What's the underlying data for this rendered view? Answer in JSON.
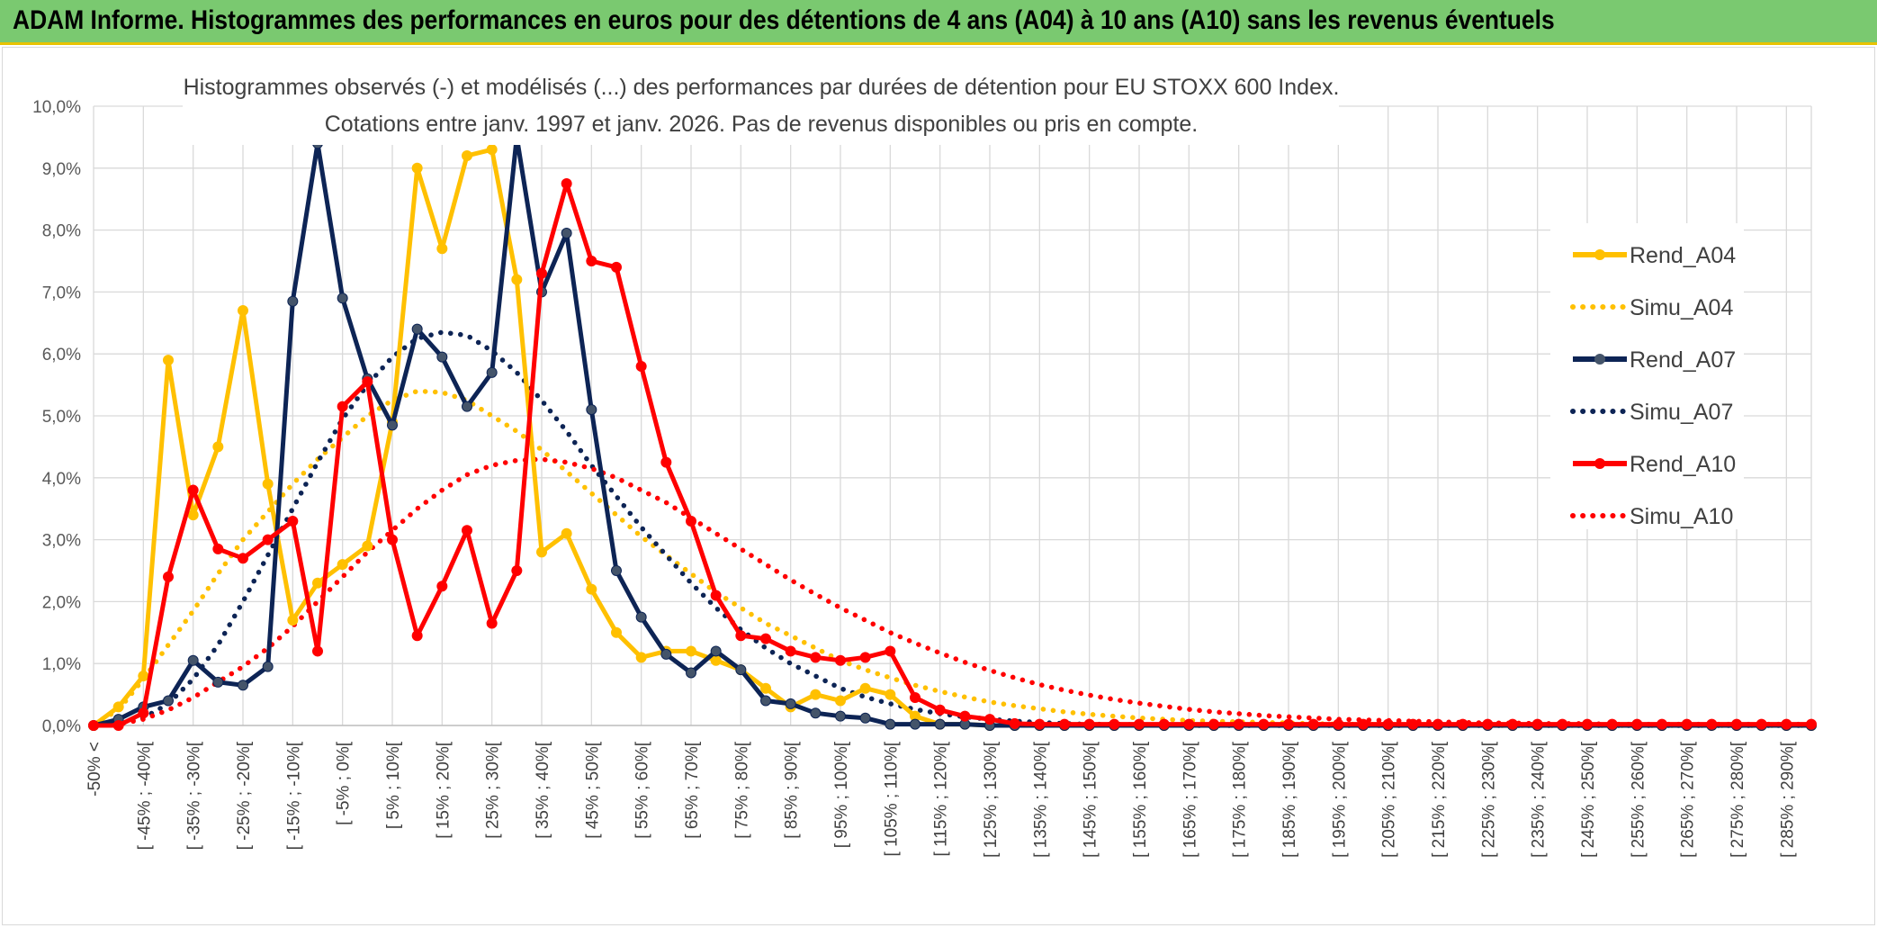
{
  "banner": {
    "title": "ADAM Informe. Histogrammes des performances en euros pour des détentions de 4 ans (A04) à 10 ans (A10) sans les revenus éventuels",
    "background": "#7ac970",
    "accent": "#e8c200"
  },
  "chart_data": {
    "type": "line",
    "title": "Histogrammes observés (-) et modélisés (...) des performances par durées de détention pour EU STOXX 600 Index.",
    "subtitle": "Cotations entre janv. 1997 et janv. 2026. Pas de revenus disponibles ou pris en compte.",
    "xlabel": "",
    "ylabel": "",
    "ylim": [
      0,
      10
    ],
    "y_ticks": [
      "0,0%",
      "1,0%",
      "2,0%",
      "3,0%",
      "4,0%",
      "5,0%",
      "6,0%",
      "7,0%",
      "8,0%",
      "9,0%",
      "10,0%"
    ],
    "grid": true,
    "legend_position": "right",
    "categories": [
      "-50% <",
      "[ -50% ; -45%[",
      "[ -45% ; -40%[",
      "[ -40% ; -35%[",
      "[ -35% ; -30%[",
      "[ -30% ; -25%[",
      "[ -25% ; -20%[",
      "[ -20% ; -15%[",
      "[ -15% ; -10%[",
      "[ -10% ; -5%[",
      "[ -5% ; 0%[",
      "[ 0% ; 5%[",
      "[ 5% ; 10%[",
      "[ 10% ; 15%[",
      "[ 15% ; 20%[",
      "[ 20% ; 25%[",
      "[ 25% ; 30%[",
      "[ 30% ; 35%[",
      "[ 35% ; 40%[",
      "[ 40% ; 45%[",
      "[ 45% ; 50%[",
      "[ 50% ; 55%[",
      "[ 55% ; 60%[",
      "[ 60% ; 65%[",
      "[ 65% ; 70%[",
      "[ 70% ; 75%[",
      "[ 75% ; 80%[",
      "[ 80% ; 85%[",
      "[ 85% ; 90%[",
      "[ 90% ; 95%[",
      "[ 95% ; 100%[",
      "[ 100% ; 105%[",
      "[ 105% ; 110%[",
      "[ 110% ; 115%[",
      "[ 115% ; 120%[",
      "[ 120% ; 125%[",
      "[ 125% ; 130%[",
      "[ 130% ; 135%[",
      "[ 135% ; 140%[",
      "[ 140% ; 145%[",
      "[ 145% ; 150%[",
      "[ 150% ; 155%[",
      "[ 155% ; 160%[",
      "[ 160% ; 165%[",
      "[ 165% ; 170%[",
      "[ 170% ; 175%[",
      "[ 175% ; 180%[",
      "[ 180% ; 185%[",
      "[ 185% ; 190%[",
      "[ 190% ; 195%[",
      "[ 195% ; 200%[",
      "[ 200% ; 205%[",
      "[ 205% ; 210%[",
      "[ 210% ; 215%[",
      "[ 215% ; 220%[",
      "[ 220% ; 225%[",
      "[ 225% ; 230%[",
      "[ 230% ; 235%[",
      "[ 235% ; 240%[",
      "[ 240% ; 245%[",
      "[ 245% ; 250%[",
      "[ 250% ; 255%[",
      "[ 255% ; 260%[",
      "[ 260% ; 265%[",
      "[ 265% ; 270%[",
      "[ 270% ; 275%[",
      "[ 275% ; 280%[",
      "[ 280% ; 285%[",
      "[ 285% ; 290%[",
      "[ 290% ; 295%["
    ],
    "visible_x_labels": [
      "-50% <",
      "[ -45% ; -40%[",
      "[ -35% ; -30%[",
      "[ -25% ; -20%[",
      "[ -15% ; -10%[",
      "[ -5% ; 0%[",
      "[ 5% ; 10%[",
      "[ 15% ; 20%[",
      "[ 25% ; 30%[",
      "[ 35% ; 40%[",
      "[ 45% ; 50%[",
      "[ 55% ; 60%[",
      "[ 65% ; 70%[",
      "[ 75% ; 80%[",
      "[ 85% ; 90%[",
      "[ 95% ; 100%[",
      "[ 105% ; 110%[",
      "[ 115% ; 120%[",
      "[ 125% ; 130%[",
      "[ 135% ; 140%[",
      "[ 145% ; 150%[",
      "[ 155% ; 160%[",
      "[ 165% ; 170%[",
      "[ 175% ; 180%[",
      "[ 185% ; 190%[",
      "[ 195% ; 200%[",
      "[ 205% ; 210%[",
      "[ 215% ; 220%[",
      "[ 225% ; 230%[",
      "[ 235% ; 240%[",
      "[ 245% ; 250%[",
      "[ 255% ; 260%[",
      "[ 265% ; 270%[",
      "[ 275% ; 280%[",
      "[ 285% ; 290%["
    ],
    "series": [
      {
        "name": "Rend_A04",
        "style": "solid",
        "markers": true,
        "color": "#ffc000",
        "values": [
          0.0,
          0.3,
          0.8,
          5.9,
          3.4,
          4.5,
          6.7,
          3.9,
          1.7,
          2.3,
          2.6,
          2.9,
          4.9,
          9.0,
          7.7,
          9.2,
          9.3,
          7.2,
          2.8,
          3.1,
          2.2,
          1.5,
          1.1,
          1.2,
          1.2,
          1.05,
          0.9,
          0.6,
          0.3,
          0.5,
          0.4,
          0.6,
          0.5,
          0.15,
          0.02,
          0.02,
          0.0,
          0.0,
          0.0,
          0.0,
          0.0,
          0.0,
          0.0,
          0.0,
          0.0,
          0.0,
          0.0,
          0.0,
          0.0,
          0.0,
          0.0,
          0.0,
          0.0,
          0.0,
          0.0,
          0.0,
          0.0,
          0.0,
          0.0,
          0.0,
          0.0,
          0.0,
          0.0,
          0.0,
          0.0,
          0.0,
          0.0,
          0.0,
          0.0,
          0.0
        ]
      },
      {
        "name": "Simu_A04",
        "style": "dotted",
        "markers": false,
        "color": "#ffc000",
        "values": [
          0.02,
          0.25,
          0.75,
          1.3,
          1.85,
          2.45,
          3.0,
          3.45,
          3.9,
          4.3,
          4.65,
          5.0,
          5.25,
          5.4,
          5.38,
          5.25,
          5.0,
          4.75,
          4.45,
          4.1,
          3.75,
          3.4,
          3.05,
          2.75,
          2.45,
          2.15,
          1.9,
          1.65,
          1.45,
          1.25,
          1.05,
          0.9,
          0.77,
          0.65,
          0.55,
          0.46,
          0.38,
          0.32,
          0.27,
          0.22,
          0.18,
          0.15,
          0.12,
          0.1,
          0.08,
          0.07,
          0.06,
          0.05,
          0.04,
          0.03,
          0.02,
          0.02,
          0.01,
          0.01,
          0.01,
          0.01,
          0.0,
          0.0,
          0.0,
          0.0,
          0.0,
          0.0,
          0.0,
          0.0,
          0.0,
          0.0,
          0.0,
          0.0,
          0.0,
          0.0
        ]
      },
      {
        "name": "Rend_A07",
        "style": "solid",
        "markers": true,
        "color": "#0d2455",
        "values": [
          0.0,
          0.1,
          0.3,
          0.4,
          1.05,
          0.7,
          0.65,
          0.95,
          6.85,
          9.4,
          6.9,
          5.6,
          4.85,
          6.4,
          5.95,
          5.15,
          5.7,
          9.5,
          7.0,
          7.95,
          5.1,
          2.5,
          1.75,
          1.15,
          0.85,
          1.2,
          0.9,
          0.4,
          0.35,
          0.2,
          0.15,
          0.12,
          0.02,
          0.02,
          0.02,
          0.02,
          0.0,
          0.0,
          0.0,
          0.0,
          0.0,
          0.0,
          0.0,
          0.0,
          0.0,
          0.0,
          0.0,
          0.0,
          0.0,
          0.0,
          0.0,
          0.0,
          0.0,
          0.0,
          0.0,
          0.0,
          0.0,
          0.0,
          0.0,
          0.0,
          0.0,
          0.0,
          0.0,
          0.0,
          0.0,
          0.0,
          0.0,
          0.0,
          0.0,
          0.0
        ]
      },
      {
        "name": "Simu_A07",
        "style": "dotted",
        "markers": false,
        "color": "#0d2455",
        "values": [
          0.0,
          0.02,
          0.12,
          0.35,
          0.75,
          1.3,
          2.0,
          2.75,
          3.5,
          4.25,
          4.95,
          5.5,
          5.95,
          6.25,
          6.35,
          6.3,
          6.05,
          5.7,
          5.25,
          4.75,
          4.2,
          3.7,
          3.2,
          2.75,
          2.3,
          1.9,
          1.55,
          1.25,
          1.0,
          0.8,
          0.6,
          0.46,
          0.35,
          0.26,
          0.19,
          0.14,
          0.1,
          0.07,
          0.05,
          0.03,
          0.02,
          0.02,
          0.01,
          0.01,
          0.0,
          0.0,
          0.0,
          0.0,
          0.0,
          0.0,
          0.0,
          0.0,
          0.0,
          0.0,
          0.0,
          0.0,
          0.0,
          0.0,
          0.0,
          0.0,
          0.0,
          0.0,
          0.0,
          0.0,
          0.0,
          0.0,
          0.0,
          0.0,
          0.0,
          0.0
        ]
      },
      {
        "name": "Rend_A10",
        "style": "solid",
        "markers": true,
        "color": "#ff0000",
        "values": [
          0.0,
          0.0,
          0.2,
          2.4,
          3.8,
          2.85,
          2.7,
          3.0,
          3.3,
          1.2,
          5.15,
          5.55,
          3.0,
          1.45,
          2.25,
          3.15,
          1.65,
          2.5,
          7.3,
          8.75,
          7.5,
          7.4,
          5.8,
          4.25,
          3.3,
          2.1,
          1.45,
          1.4,
          1.2,
          1.1,
          1.05,
          1.1,
          1.2,
          0.45,
          0.25,
          0.15,
          0.1,
          0.03,
          0.02,
          0.02,
          0.02,
          0.02,
          0.02,
          0.02,
          0.02,
          0.02,
          0.02,
          0.02,
          0.02,
          0.02,
          0.02,
          0.02,
          0.02,
          0.02,
          0.02,
          0.02,
          0.02,
          0.02,
          0.02,
          0.02,
          0.02,
          0.02,
          0.02,
          0.02,
          0.02,
          0.02,
          0.02,
          0.02,
          0.02,
          0.02
        ]
      },
      {
        "name": "Simu_A10",
        "style": "dotted",
        "markers": false,
        "color": "#ff0000",
        "values": [
          0.0,
          0.02,
          0.1,
          0.25,
          0.45,
          0.7,
          0.95,
          1.25,
          1.6,
          2.0,
          2.4,
          2.8,
          3.15,
          3.5,
          3.8,
          4.05,
          4.2,
          4.28,
          4.3,
          4.25,
          4.15,
          4.0,
          3.8,
          3.6,
          3.35,
          3.1,
          2.85,
          2.6,
          2.35,
          2.12,
          1.9,
          1.7,
          1.5,
          1.33,
          1.17,
          1.02,
          0.89,
          0.77,
          0.66,
          0.57,
          0.49,
          0.42,
          0.36,
          0.31,
          0.26,
          0.22,
          0.19,
          0.16,
          0.14,
          0.12,
          0.1,
          0.09,
          0.08,
          0.07,
          0.06,
          0.05,
          0.04,
          0.04,
          0.03,
          0.03,
          0.03,
          0.02,
          0.02,
          0.02,
          0.02,
          0.02,
          0.02,
          0.02,
          0.02,
          0.02
        ]
      }
    ]
  }
}
